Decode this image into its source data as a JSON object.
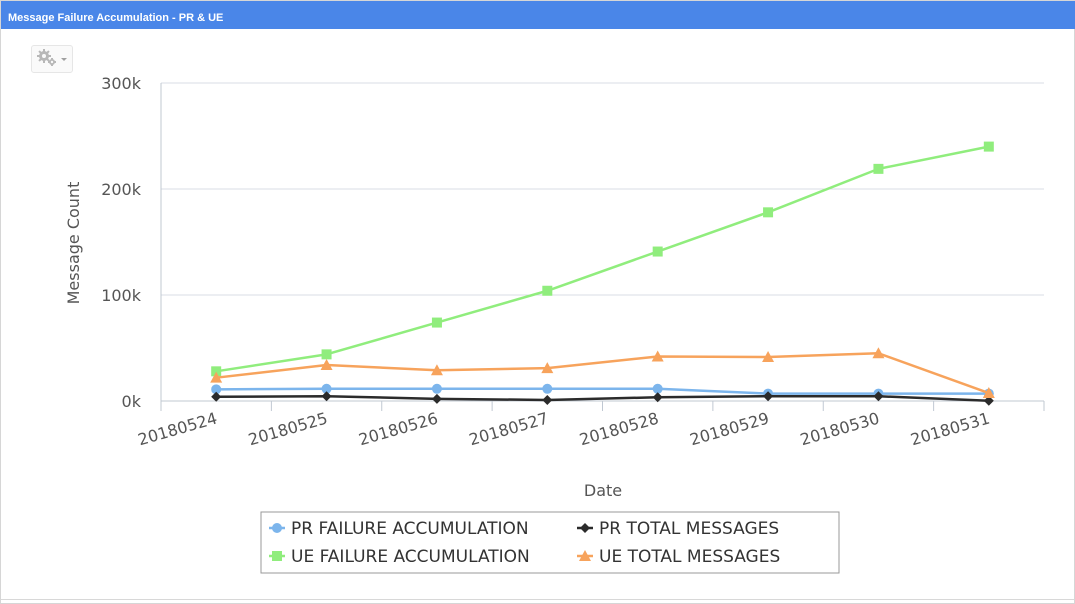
{
  "window": {
    "title": "Message Failure Accumulation - PR & UE"
  },
  "toolbar": {
    "settings_icon": "gear-icon"
  },
  "colors": {
    "title_bar": "#4a86e8",
    "pr_failure": "#7cb5ec",
    "pr_total": "#2b2b2b",
    "ue_failure": "#90ed7d",
    "ue_total": "#f7a35c",
    "grid": "#d9dee5",
    "axis_text": "#555555"
  },
  "chart_data": {
    "type": "line",
    "title": "",
    "xlabel": "Date",
    "ylabel": "Message Count",
    "categories": [
      "20180524",
      "20180525",
      "20180526",
      "20180527",
      "20180528",
      "20180529",
      "20180530",
      "20180531"
    ],
    "ylim": [
      0,
      300000
    ],
    "yticks": [
      0,
      100000,
      200000,
      300000
    ],
    "ytick_labels": [
      "0k",
      "100k",
      "200k",
      "300k"
    ],
    "grid": true,
    "legend_position": "bottom-center",
    "series": [
      {
        "name": "PR FAILURE ACCUMULATION",
        "marker": "circle",
        "color": "#7cb5ec",
        "values": [
          11000,
          11500,
          11500,
          11500,
          11500,
          7000,
          7000,
          7000
        ]
      },
      {
        "name": "PR TOTAL MESSAGES",
        "marker": "diamond",
        "color": "#2b2b2b",
        "values": [
          4000,
          4500,
          2000,
          1000,
          3500,
          4500,
          4500,
          200
        ]
      },
      {
        "name": "UE FAILURE ACCUMULATION",
        "marker": "square",
        "color": "#90ed7d",
        "values": [
          28000,
          44000,
          74000,
          104000,
          141000,
          178000,
          219000,
          240000
        ]
      },
      {
        "name": "UE TOTAL MESSAGES",
        "marker": "triangle",
        "color": "#f7a35c",
        "values": [
          22000,
          34000,
          29000,
          31000,
          42000,
          41500,
          45000,
          7500
        ]
      }
    ]
  }
}
